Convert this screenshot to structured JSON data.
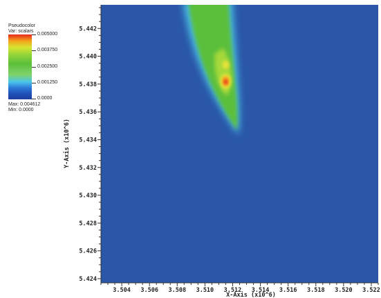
{
  "legend": {
    "title": "Pseudocolor",
    "var": "Var: scalars",
    "ticks": [
      "0.005000",
      "0.003750",
      "0.002500",
      "0.001250",
      "0.0000"
    ],
    "max": "Max: 0.004612",
    "min": "Min: 0.0000"
  },
  "chart_data": {
    "type": "heatmap",
    "title": "",
    "xlabel": "X-Axis  (x10^6)",
    "ylabel": "Y-Axis  (x10^6)",
    "xlim": [
      3.5025,
      3.5225
    ],
    "ylim": [
      5.4237,
      5.4437
    ],
    "x_ticks": [
      "3.504",
      "3.506",
      "3.508",
      "3.510",
      "3.512",
      "3.514",
      "3.516",
      "3.518",
      "3.520",
      "3.522"
    ],
    "y_ticks": [
      "5.424",
      "5.426",
      "5.428",
      "5.430",
      "5.432",
      "5.434",
      "5.436",
      "5.438",
      "5.440",
      "5.442"
    ],
    "variable": "scalars",
    "colormap": "Pseudocolor",
    "value_range": [
      0.0,
      0.005
    ],
    "data_max": 0.004612,
    "data_min": 0.0,
    "background_value": 0.0,
    "plume": {
      "tip": {
        "x": 3.5124,
        "y": 5.4345
      },
      "top_left_edge": {
        "x": 3.5087,
        "y": 5.4437
      },
      "top_right_edge": {
        "x": 3.5115,
        "y": 5.4437
      },
      "peak": {
        "x": 3.5115,
        "y": 5.4382,
        "value": 0.004612
      }
    },
    "colors": {
      "background": "#2a57a8",
      "cyan": "#4cc6ea",
      "green": "#5cbf3a",
      "yellow": "#e8e23a",
      "orange": "#f39a1c",
      "red": "#e8261b"
    },
    "grid": false
  }
}
